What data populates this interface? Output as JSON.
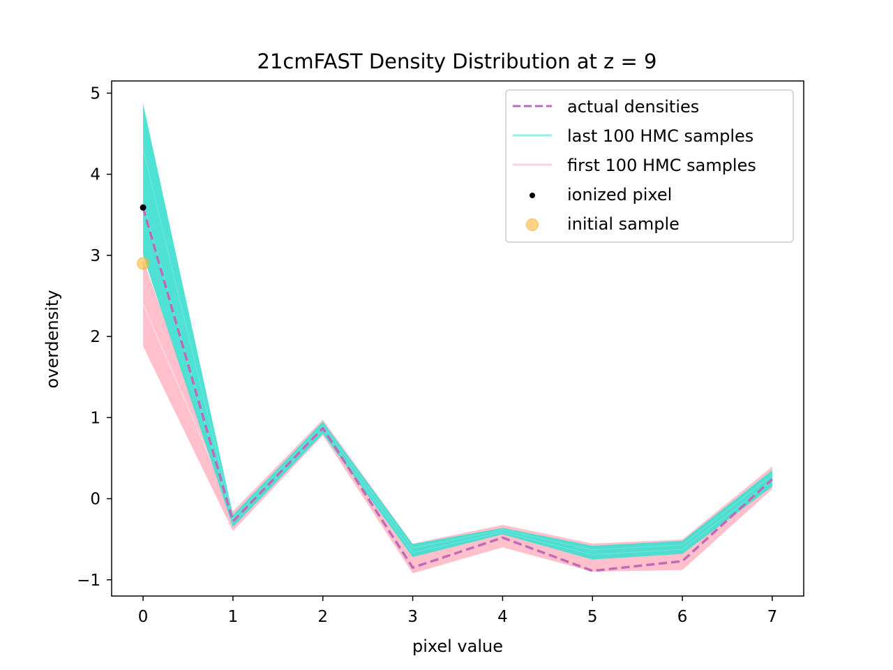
{
  "chart_data": {
    "type": "line",
    "title": "21cmFAST Density Distribution at z = 9",
    "xlabel": "pixel value",
    "ylabel": "overdensity",
    "xlim": [
      -0.35,
      7.35
    ],
    "ylim": [
      -1.2,
      5.15
    ],
    "x_ticks": [
      0,
      1,
      2,
      3,
      4,
      5,
      6,
      7
    ],
    "y_ticks": [
      -1,
      0,
      1,
      2,
      3,
      4,
      5
    ],
    "x_tick_labels": [
      "0",
      "1",
      "2",
      "3",
      "4",
      "5",
      "6",
      "7"
    ],
    "y_tick_labels": [
      "−1",
      "0",
      "1",
      "2",
      "3",
      "4",
      "5"
    ],
    "grid": false,
    "legend_position": "top-right",
    "x": [
      0,
      1,
      2,
      3,
      4,
      5,
      6,
      7
    ],
    "series": [
      {
        "name": "actual densities",
        "style": "dashed",
        "color": "#c06ab8",
        "values": [
          3.59,
          -0.28,
          0.87,
          -0.85,
          -0.48,
          -0.89,
          -0.77,
          0.24
        ]
      },
      {
        "name": "last 100 HMC samples",
        "style": "band",
        "color": "#40e0d0",
        "min": [
          3.0,
          -0.35,
          0.8,
          -0.72,
          -0.44,
          -0.75,
          -0.68,
          0.15
        ],
        "max": [
          4.87,
          -0.2,
          0.95,
          -0.56,
          -0.36,
          -0.58,
          -0.52,
          0.35
        ]
      },
      {
        "name": "first 100 HMC samples",
        "style": "band",
        "color": "#ffc0cb",
        "min": [
          1.88,
          -0.4,
          0.78,
          -0.92,
          -0.6,
          -0.9,
          -0.88,
          0.12
        ],
        "max": [
          2.95,
          -0.15,
          0.98,
          -0.55,
          -0.32,
          -0.55,
          -0.5,
          0.4
        ]
      },
      {
        "name": "ionized pixel",
        "style": "point",
        "color": "#000000",
        "points": [
          {
            "x": 0,
            "y": 3.59
          }
        ]
      },
      {
        "name": "initial sample",
        "style": "point",
        "color": "#ffb732",
        "points": [
          {
            "x": 0,
            "y": 2.9
          }
        ]
      }
    ]
  }
}
